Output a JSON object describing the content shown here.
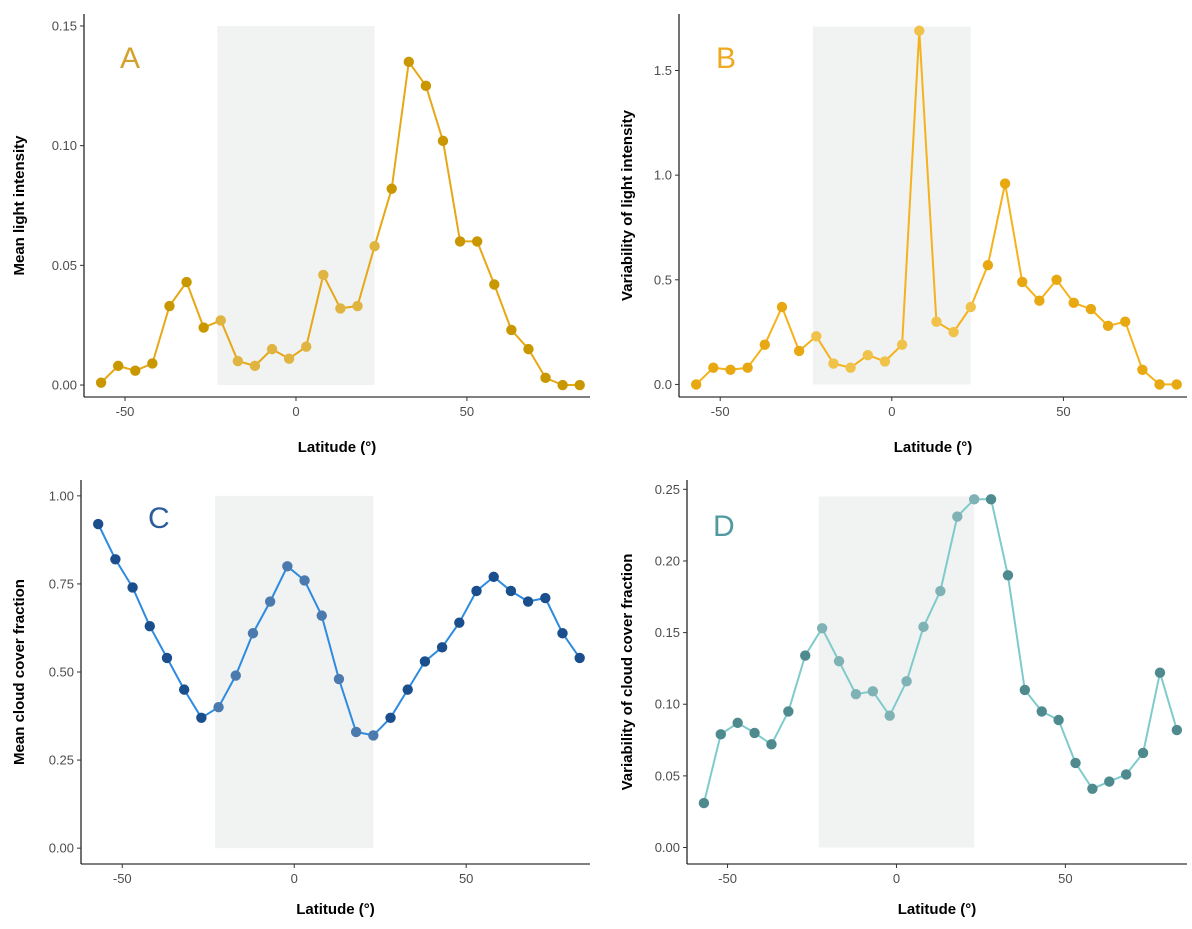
{
  "chart_data": [
    {
      "type": "line",
      "panel_label": "A",
      "xlabel": "Latitude (°)",
      "ylabel": "Mean light intensity",
      "xlim": [
        -62,
        86
      ],
      "ylim": [
        -0.005,
        0.155
      ],
      "xticks": [
        -50,
        0,
        50
      ],
      "xtick_labels": [
        "-50",
        "0",
        "50"
      ],
      "yticks": [
        0.0,
        0.05,
        0.1,
        0.15
      ],
      "ytick_labels": [
        "0.00",
        "0.05",
        "0.10",
        "0.15"
      ],
      "shaded_x_range": [
        -23,
        23
      ],
      "shaded_y_range": [
        0,
        0.15
      ],
      "grid": false,
      "colors": {
        "line": "#E6A817",
        "tropics": "#F1F2F2",
        "label": "#D4A12A",
        "point_out": "#C99700",
        "point_in": "#E0B440"
      },
      "series": [
        {
          "x": [
            -57,
            -52,
            -47,
            -42,
            -37,
            -32,
            -27,
            -22,
            -17,
            -12,
            -7,
            -2,
            3,
            8,
            13,
            18,
            23,
            28,
            33,
            38,
            43,
            48,
            53,
            58,
            63,
            68,
            73,
            78,
            83
          ],
          "y": [
            0.001,
            0.008,
            0.006,
            0.009,
            0.033,
            0.043,
            0.024,
            0.027,
            0.01,
            0.008,
            0.015,
            0.011,
            0.016,
            0.046,
            0.032,
            0.033,
            0.058,
            0.082,
            0.135,
            0.125,
            0.102,
            0.06,
            0.06,
            0.042,
            0.023,
            0.015,
            0.003,
            0.0,
            0.0
          ]
        }
      ]
    },
    {
      "type": "line",
      "panel_label": "B",
      "xlabel": "Latitude (°)",
      "ylabel": "Variability of light intensity",
      "xlim": [
        -62,
        86
      ],
      "ylim": [
        -0.06,
        1.77
      ],
      "xticks": [
        -50,
        0,
        50
      ],
      "xtick_labels": [
        "-50",
        "0",
        "50"
      ],
      "yticks": [
        0.0,
        0.5,
        1.0,
        1.5
      ],
      "ytick_labels": [
        "0.0",
        "0.5",
        "1.0",
        "1.5"
      ],
      "shaded_x_range": [
        -23,
        23
      ],
      "shaded_y_range": [
        0,
        1.71
      ],
      "grid": false,
      "colors": {
        "line": "#F5B21C",
        "tropics": "#F1F2F2",
        "label": "#F0A820",
        "point_out": "#E8A812",
        "point_in": "#F0C24A"
      },
      "series": [
        {
          "x": [
            -57,
            -52,
            -47,
            -42,
            -37,
            -32,
            -27,
            -22,
            -17,
            -12,
            -7,
            -2,
            3,
            8,
            13,
            18,
            23,
            28,
            33,
            38,
            43,
            48,
            53,
            58,
            63,
            68,
            73,
            78,
            83
          ],
          "y": [
            0.0,
            0.08,
            0.07,
            0.08,
            0.19,
            0.37,
            0.16,
            0.23,
            0.1,
            0.08,
            0.14,
            0.11,
            0.19,
            1.69,
            0.3,
            0.25,
            0.37,
            0.57,
            0.96,
            0.49,
            0.4,
            0.5,
            0.39,
            0.36,
            0.28,
            0.3,
            0.07,
            0.0,
            0.0
          ]
        }
      ]
    },
    {
      "type": "line",
      "panel_label": "C",
      "xlabel": "Latitude (°)",
      "ylabel": "Mean cloud cover fraction",
      "xlim": [
        -62,
        86
      ],
      "ylim": [
        -0.045,
        1.045
      ],
      "xticks": [
        -50,
        0,
        50
      ],
      "xtick_labels": [
        "-50",
        "0",
        "50"
      ],
      "yticks": [
        0.0,
        0.25,
        0.5,
        0.75,
        1.0
      ],
      "ytick_labels": [
        "0.00",
        "0.25",
        "0.50",
        "0.75",
        "1.00"
      ],
      "shaded_x_range": [
        -23,
        23
      ],
      "shaded_y_range": [
        0,
        1.0
      ],
      "grid": false,
      "colors": {
        "line": "#2E8BE0",
        "tropics": "#F1F2F2",
        "label": "#2C5C9C",
        "point_out": "#1A4E8C",
        "point_in": "#4A7AAE"
      },
      "series": [
        {
          "x": [
            -57,
            -52,
            -47,
            -42,
            -37,
            -32,
            -27,
            -22,
            -17,
            -12,
            -7,
            -2,
            3,
            8,
            13,
            18,
            23,
            28,
            33,
            38,
            43,
            48,
            53,
            58,
            63,
            68,
            73,
            78,
            83
          ],
          "y": [
            0.92,
            0.82,
            0.74,
            0.63,
            0.54,
            0.45,
            0.37,
            0.4,
            0.49,
            0.61,
            0.7,
            0.8,
            0.76,
            0.66,
            0.48,
            0.33,
            0.32,
            0.37,
            0.45,
            0.53,
            0.57,
            0.64,
            0.73,
            0.77,
            0.73,
            0.7,
            0.71,
            0.61,
            0.54
          ]
        }
      ]
    },
    {
      "type": "line",
      "panel_label": "D",
      "xlabel": "Latitude (°)",
      "ylabel": "Variability of cloud cover fraction",
      "xlim": [
        -62,
        86
      ],
      "ylim": [
        -0.0115,
        0.2565
      ],
      "xticks": [
        -50,
        0,
        50
      ],
      "xtick_labels": [
        "-50",
        "0",
        "50"
      ],
      "yticks": [
        0.0,
        0.05,
        0.1,
        0.15,
        0.2,
        0.25
      ],
      "ytick_labels": [
        "0.00",
        "0.05",
        "0.10",
        "0.15",
        "0.20",
        "0.25"
      ],
      "shaded_x_range": [
        -23,
        23
      ],
      "shaded_y_range": [
        0,
        0.245
      ],
      "grid": false,
      "colors": {
        "line": "#7FCBCC",
        "tropics": "#F1F2F2",
        "label": "#4E9AA0",
        "point_out": "#4E8A8E",
        "point_in": "#7FB2B5"
      },
      "series": [
        {
          "x": [
            -57,
            -52,
            -47,
            -42,
            -37,
            -32,
            -27,
            -22,
            -17,
            -12,
            -7,
            -2,
            3,
            8,
            13,
            18,
            23,
            28,
            33,
            38,
            43,
            48,
            53,
            58,
            63,
            68,
            73,
            78,
            83
          ],
          "y": [
            0.031,
            0.079,
            0.087,
            0.08,
            0.072,
            0.095,
            0.134,
            0.153,
            0.13,
            0.107,
            0.109,
            0.092,
            0.116,
            0.154,
            0.179,
            0.231,
            0.243,
            0.243,
            0.19,
            0.11,
            0.095,
            0.089,
            0.059,
            0.041,
            0.046,
            0.051,
            0.066,
            0.122,
            0.082
          ]
        }
      ]
    }
  ]
}
